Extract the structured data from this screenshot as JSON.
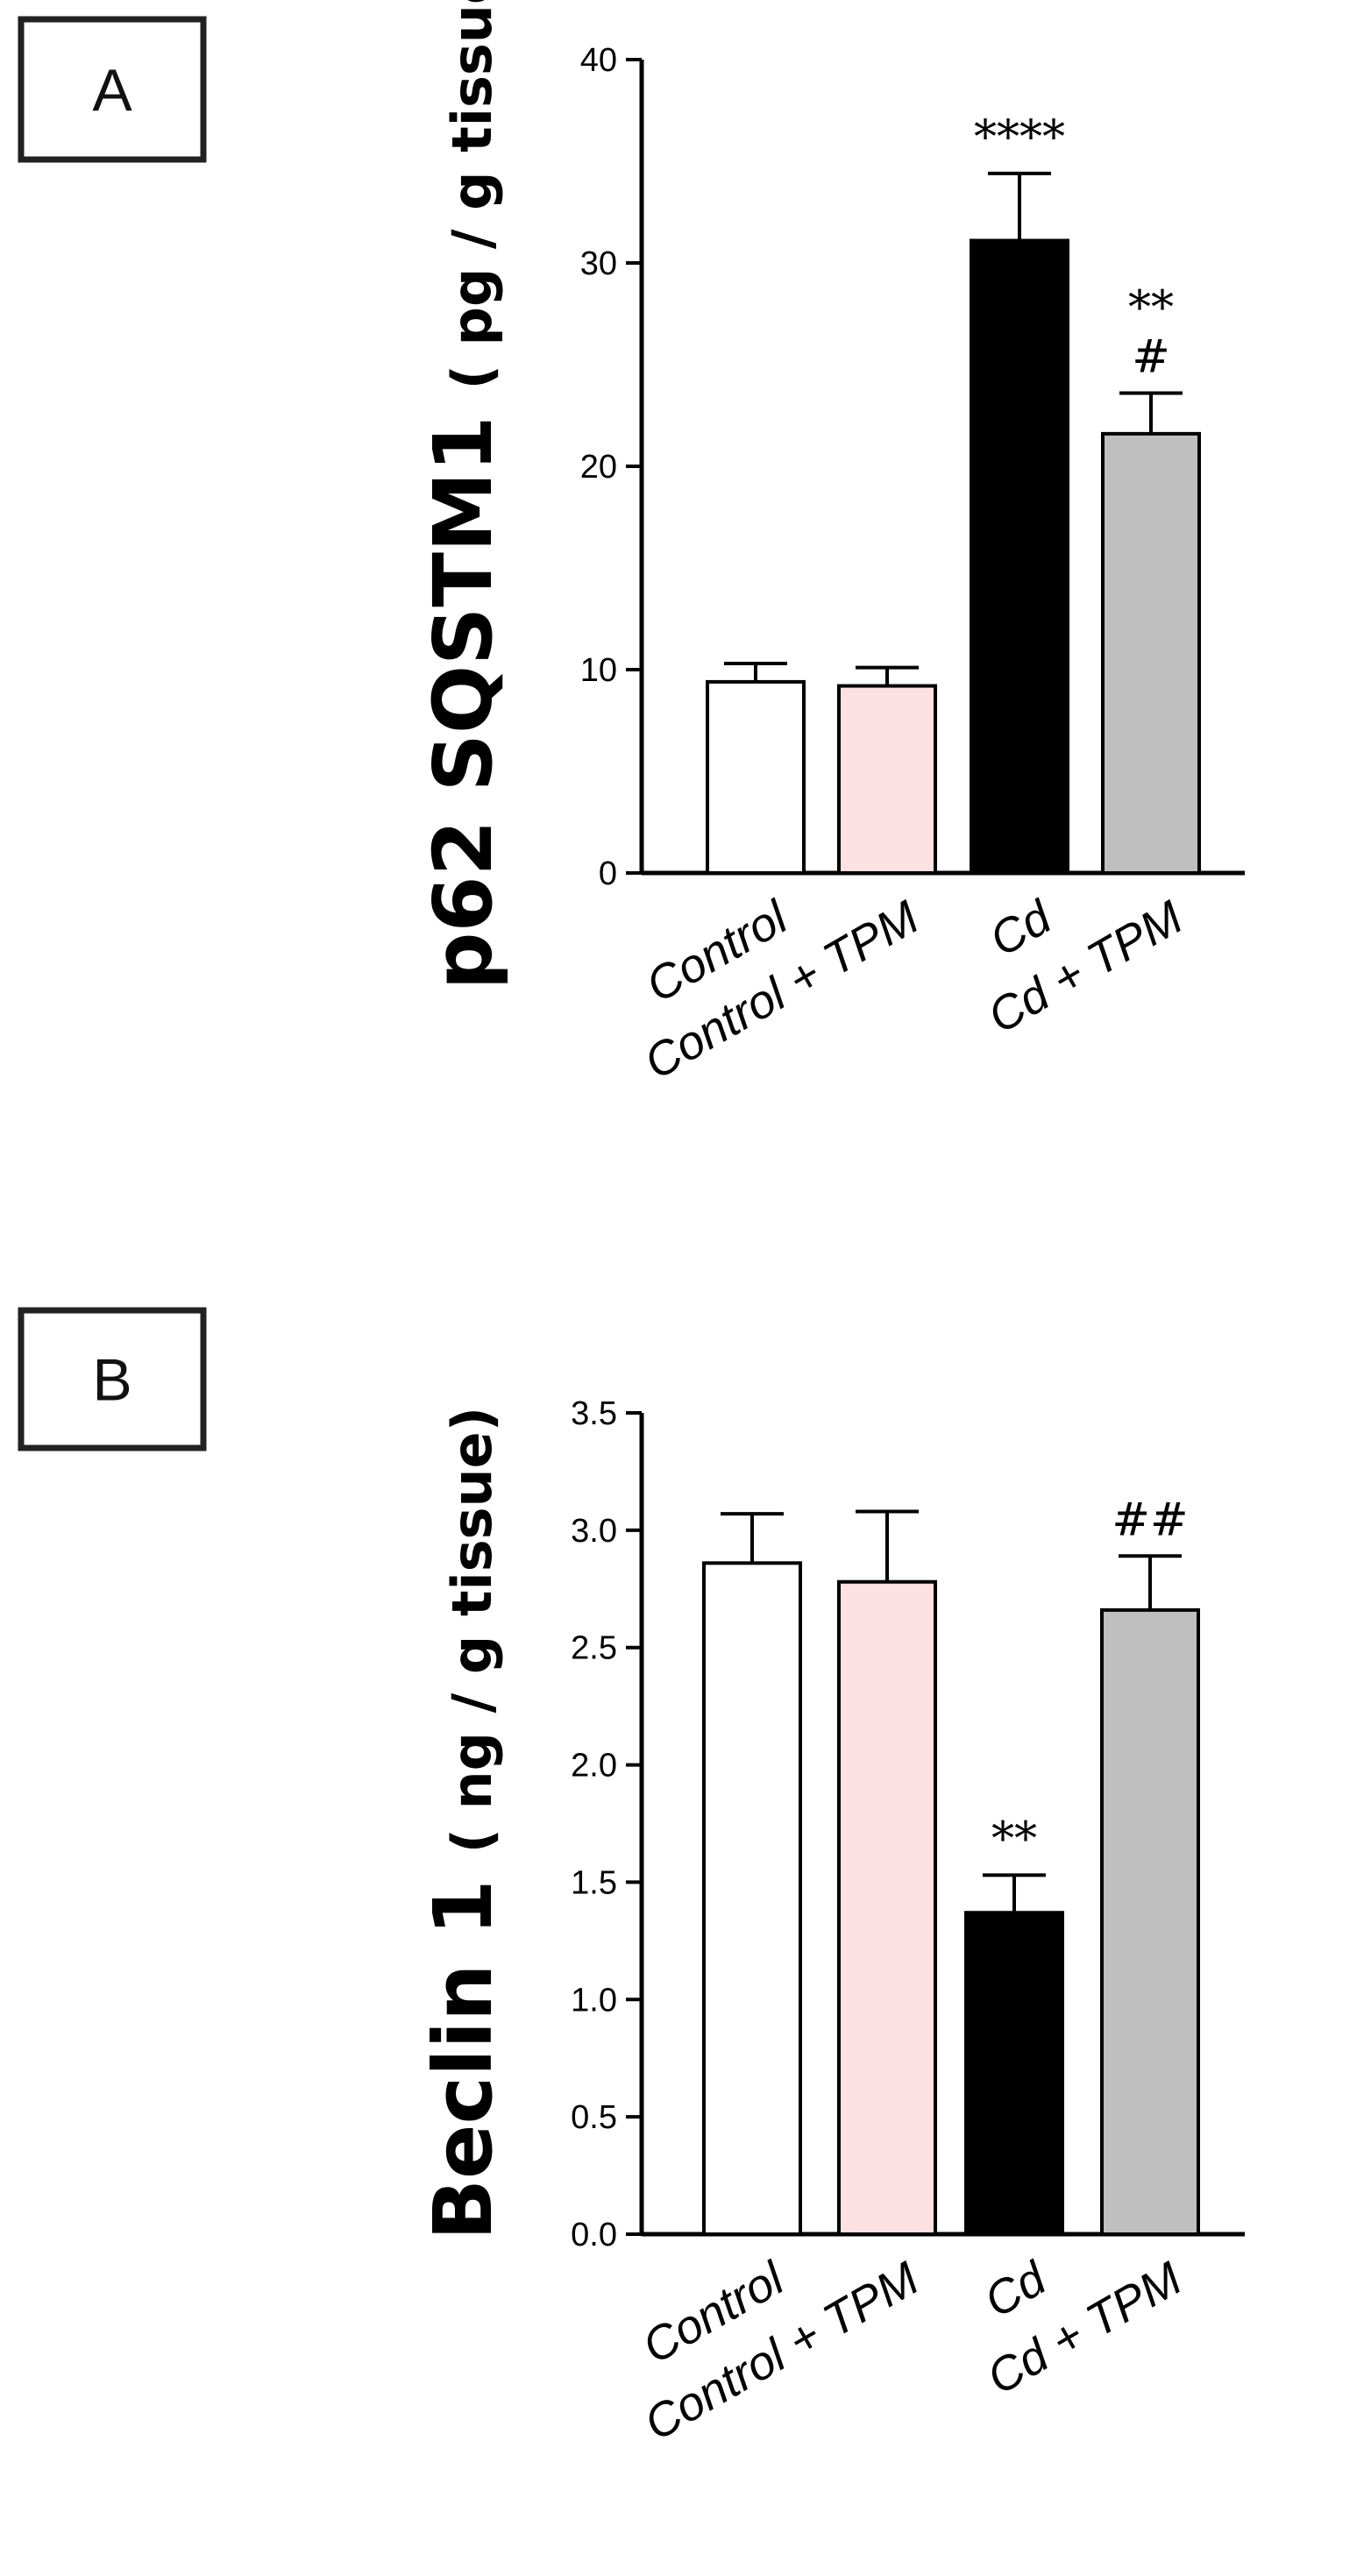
{
  "chart_data": [
    {
      "panel": "A",
      "type": "bar",
      "categories": [
        "Control",
        "Control + TPM",
        "Cd",
        "Cd + TPM"
      ],
      "values": [
        9.4,
        9.2,
        31.1,
        21.6
      ],
      "errors": [
        0.9,
        0.9,
        3.3,
        2.0
      ],
      "colors": [
        "#ffffff",
        "#fde0e2",
        "#000000",
        "#bfbfbf"
      ],
      "annotations": [
        "",
        "",
        "****",
        "**\n#"
      ],
      "ylabel": "p62 SQSTM1",
      "yunit": "( pg / g tissue)",
      "ylim": [
        0,
        40
      ],
      "yticks": [
        "0",
        "10",
        "20",
        "30",
        "40"
      ],
      "grid": false
    },
    {
      "panel": "B",
      "type": "bar",
      "categories": [
        "Control",
        "Control + TPM",
        "Cd",
        "Cd + TPM"
      ],
      "values": [
        2.86,
        2.78,
        1.37,
        2.66
      ],
      "errors": [
        0.21,
        0.3,
        0.16,
        0.23
      ],
      "colors": [
        "#ffffff",
        "#fde0e2",
        "#000000",
        "#bfbfbf"
      ],
      "annotations": [
        "",
        "",
        "**",
        "##"
      ],
      "ylabel": "Beclin 1",
      "yunit": "( ng / g tissue)",
      "ylim": [
        0,
        3.5
      ],
      "yticks": [
        "0.0",
        "0.5",
        "1.0",
        "1.5",
        "2.0",
        "2.5",
        "3.0",
        "3.5"
      ],
      "grid": false
    }
  ]
}
